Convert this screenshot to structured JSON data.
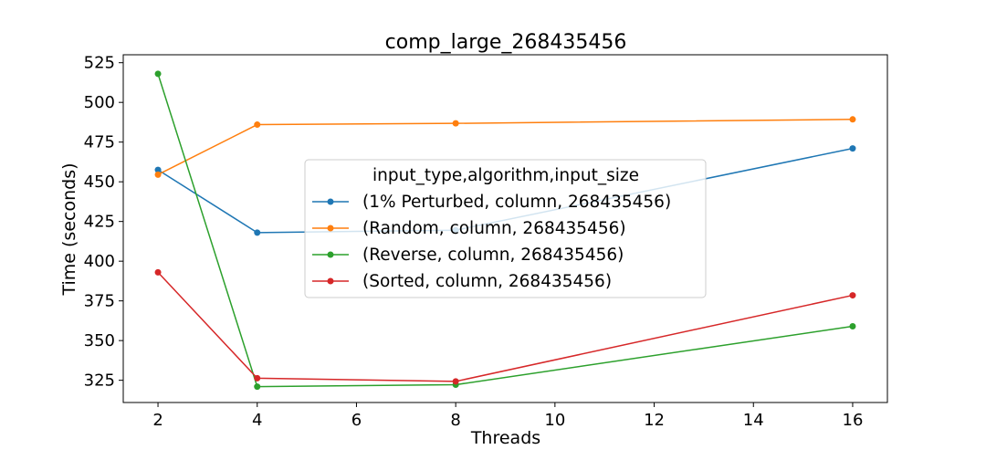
{
  "chart_data": {
    "type": "line",
    "title": "comp_large_268435456",
    "xlabel": "Threads",
    "ylabel": "Time (seconds)",
    "xlim": [
      1.3,
      16.7
    ],
    "ylim": [
      311,
      530
    ],
    "xticks": [
      2,
      4,
      6,
      8,
      10,
      12,
      14,
      16
    ],
    "yticks": [
      325,
      350,
      375,
      400,
      425,
      450,
      475,
      500,
      525
    ],
    "grid": false,
    "legend": {
      "title": "input_type,algorithm,input_size",
      "placement": "center"
    },
    "x": [
      2,
      4,
      8,
      16
    ],
    "series": [
      {
        "name": "(1% Perturbed, column, 268435456)",
        "color": "#1f77b4",
        "values": [
          457.5,
          418.0,
          419.5,
          471.0
        ]
      },
      {
        "name": "(Random, column, 268435456)",
        "color": "#ff7f0e",
        "values": [
          454.5,
          486.0,
          486.8,
          489.3
        ]
      },
      {
        "name": "(Reverse, column, 268435456)",
        "color": "#2ca02c",
        "values": [
          518.0,
          321.0,
          322.2,
          359.0
        ]
      },
      {
        "name": "(Sorted, column, 268435456)",
        "color": "#d62728",
        "values": [
          393.0,
          326.3,
          324.3,
          378.5
        ]
      }
    ]
  }
}
